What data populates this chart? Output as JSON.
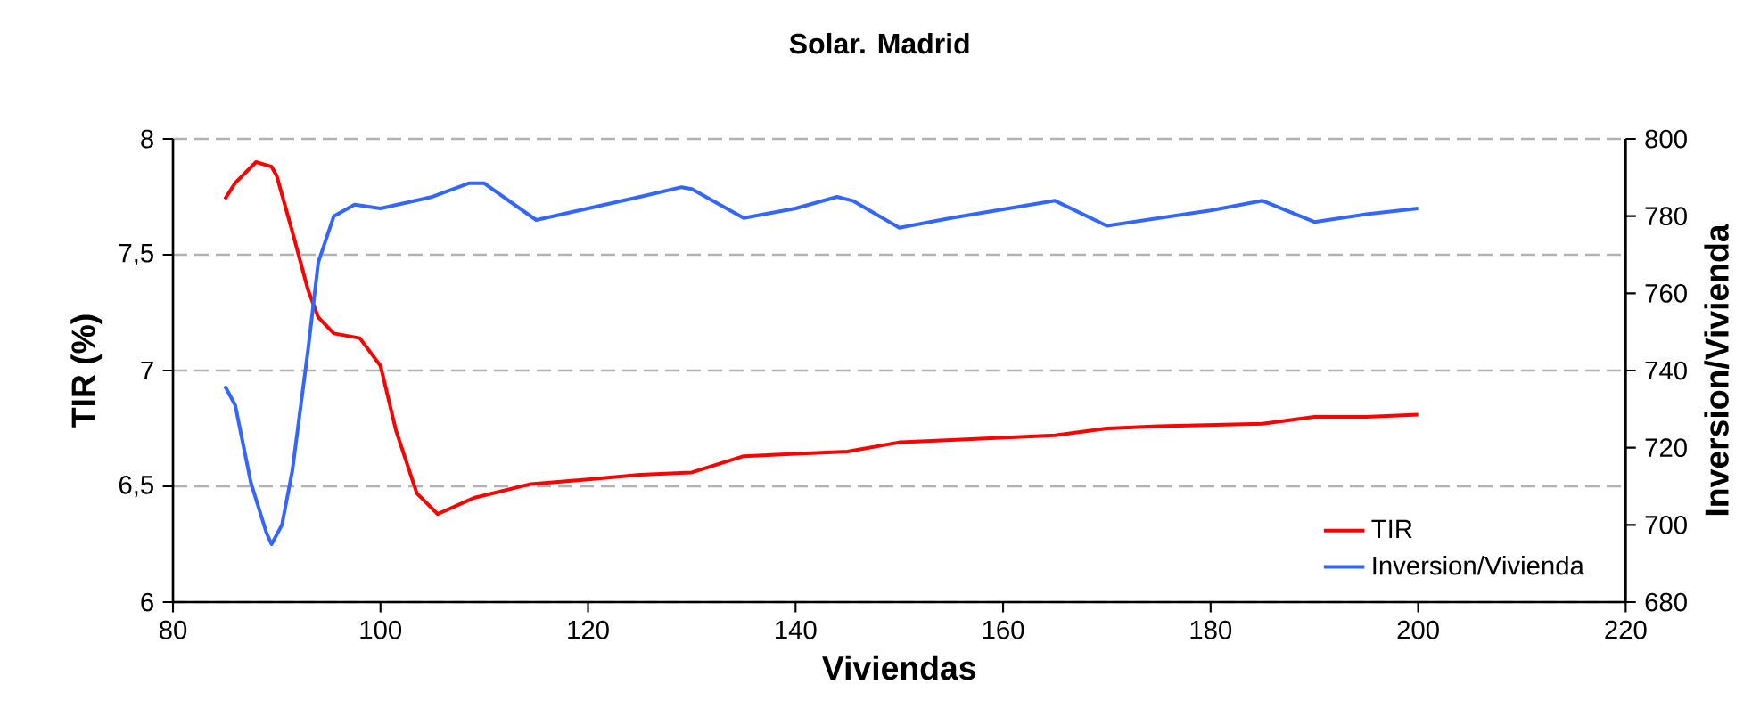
{
  "chart_data": {
    "type": "line",
    "title": "Solar. Madrid",
    "xlabel": "Viviendas",
    "ylabel": "TIR (%)",
    "y2label": "Inversion/Vivienda",
    "xlim": [
      80,
      220
    ],
    "xticks": [
      80,
      100,
      120,
      140,
      160,
      180,
      200,
      220
    ],
    "ylim": [
      6,
      8
    ],
    "yticks": [
      6,
      {
        "value": 6.5,
        "label": "6,5"
      },
      7,
      {
        "value": 7.5,
        "label": "7,5"
      },
      8
    ],
    "y2lim": [
      680,
      800
    ],
    "y2ticks": [
      680,
      700,
      720,
      740,
      760,
      780,
      800
    ],
    "grid": "y",
    "legend": "bottom right",
    "series": [
      {
        "name": "TIR",
        "color": "#ff0000",
        "x": [
          85,
          86,
          88,
          89.5,
          90,
          91.5,
          93,
          94,
          95.5,
          98,
          100,
          101.5,
          103.5,
          105.5,
          109,
          114.5,
          120,
          125,
          130,
          135,
          140,
          145,
          150,
          155,
          165,
          170,
          175,
          185,
          190,
          195,
          200
        ],
        "values": [
          7.74,
          7.81,
          7.9,
          7.88,
          7.84,
          7.6,
          7.35,
          7.23,
          7.16,
          7.14,
          7.02,
          6.74,
          6.47,
          6.38,
          6.45,
          6.51,
          6.53,
          6.55,
          6.56,
          6.63,
          6.64,
          6.65,
          6.69,
          6.7,
          6.72,
          6.75,
          6.76,
          6.77,
          6.8,
          6.8,
          6.81
        ]
      },
      {
        "name": "Inversion/Vivienda",
        "color": "#3366ff",
        "axis": "y2",
        "x": [
          85,
          86,
          87.5,
          89,
          89.5,
          90.5,
          91.5,
          93,
          94,
          95.5,
          97.5,
          100,
          105,
          108.5,
          110,
          115,
          120,
          125,
          129,
          130,
          135,
          140,
          144,
          145.5,
          150,
          155,
          165,
          170,
          180,
          185,
          190,
          195,
          200
        ],
        "values": [
          736,
          731,
          711,
          698,
          695,
          700,
          714,
          745,
          768,
          780,
          783,
          782,
          785,
          788.5,
          788.5,
          779,
          782,
          785,
          787.5,
          787,
          779.5,
          782,
          785,
          784,
          777,
          779.5,
          784,
          777.5,
          781.5,
          784,
          778.5,
          780.5,
          782
        ]
      }
    ]
  }
}
